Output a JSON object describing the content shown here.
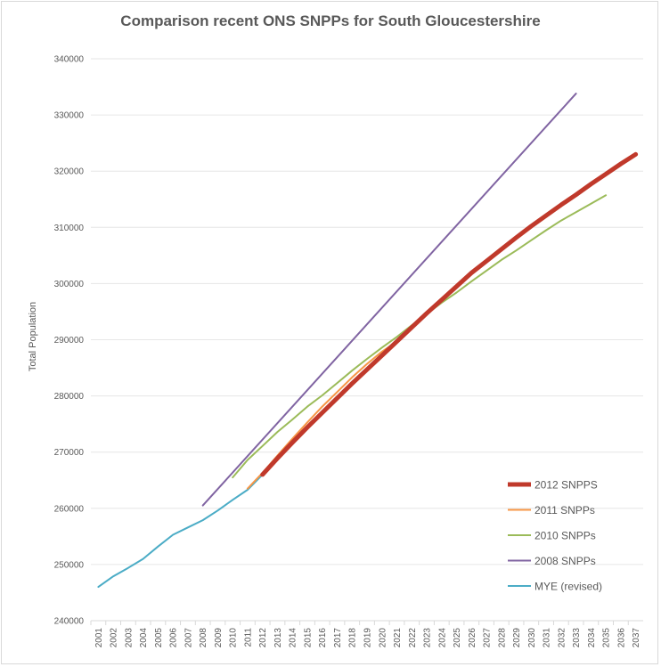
{
  "chart_data": {
    "type": "line",
    "title": "Comparison recent ONS SNPPs for South Gloucestershire",
    "xlabel": "",
    "ylabel": "Total Population",
    "ylim": [
      240000,
      340000
    ],
    "yticks": [
      "240000",
      "250000",
      "260000",
      "270000",
      "280000",
      "290000",
      "300000",
      "310000",
      "320000",
      "330000",
      "340000"
    ],
    "categories": [
      "2001",
      "2002",
      "2003",
      "2004",
      "2005",
      "2006",
      "2007",
      "2008",
      "2009",
      "2010",
      "2011",
      "2012",
      "2013",
      "2014",
      "2015",
      "2016",
      "2017",
      "2018",
      "2019",
      "2020",
      "2021",
      "2022",
      "2023",
      "2024",
      "2025",
      "2026",
      "2027",
      "2028",
      "2029",
      "2030",
      "2031",
      "2032",
      "2033",
      "2034",
      "2035",
      "2036",
      "2037"
    ],
    "grid": true,
    "legend_position": "bottom-right",
    "series": [
      {
        "name": "2012 SNPPS",
        "color": "#c0392b",
        "width": 5,
        "x": [
          2012,
          2013,
          2014,
          2015,
          2016,
          2017,
          2018,
          2019,
          2020,
          2021,
          2022,
          2023,
          2024,
          2025,
          2026,
          2027,
          2028,
          2029,
          2030,
          2031,
          2032,
          2033,
          2034,
          2035,
          2036,
          2037
        ],
        "values": [
          266000,
          268900,
          271700,
          274400,
          277000,
          279600,
          282200,
          284700,
          287200,
          289700,
          292200,
          294700,
          297100,
          299500,
          301900,
          304000,
          306100,
          308200,
          310200,
          312100,
          314000,
          315800,
          317700,
          319500,
          321300,
          323000
        ]
      },
      {
        "name": "2011 SNPPs",
        "color": "#f79646",
        "width": 2,
        "x": [
          2011,
          2012,
          2013,
          2014,
          2015,
          2016,
          2017,
          2018,
          2019,
          2020,
          2021
        ],
        "values": [
          263500,
          266300,
          269400,
          272400,
          275300,
          278100,
          280700,
          283300,
          285700,
          287900,
          289700
        ]
      },
      {
        "name": "2010 SNPPs",
        "color": "#9bbb59",
        "width": 2,
        "x": [
          2010,
          2011,
          2012,
          2013,
          2014,
          2015,
          2016,
          2017,
          2018,
          2019,
          2020,
          2021,
          2022,
          2023,
          2024,
          2025,
          2026,
          2027,
          2028,
          2029,
          2030,
          2031,
          2032,
          2033,
          2034,
          2035
        ],
        "values": [
          265500,
          268600,
          271100,
          273600,
          275800,
          278100,
          280100,
          282300,
          284500,
          286600,
          288600,
          290500,
          292600,
          294600,
          296600,
          298400,
          300400,
          302300,
          304200,
          305900,
          307700,
          309500,
          311200,
          312700,
          314200,
          315700
        ]
      },
      {
        "name": "2008 SNPPs",
        "color": "#8064a2",
        "width": 2,
        "x": [
          2008,
          2033
        ],
        "values": [
          260500,
          333800
        ]
      },
      {
        "name": "MYE (revised)",
        "color": "#4bacc6",
        "width": 2,
        "x": [
          2001,
          2002,
          2003,
          2004,
          2005,
          2006,
          2007,
          2008,
          2009,
          2010,
          2011,
          2012
        ],
        "values": [
          246000,
          247900,
          249400,
          251000,
          253200,
          255300,
          256600,
          257900,
          259600,
          261500,
          263300,
          266000
        ]
      }
    ]
  }
}
